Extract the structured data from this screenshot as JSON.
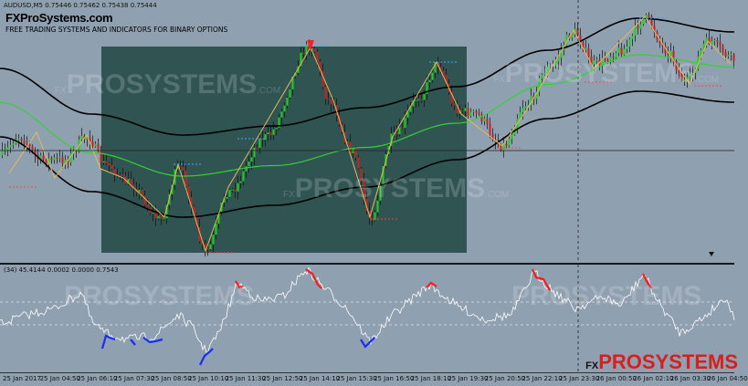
{
  "header": {
    "symbol_line": "AUDUSD,M5  0.75446 0.75462 0.75438 0.75444",
    "brand": "FXProSystems.com",
    "tagline": "FREE TRADING SYSTEMS AND INDICATORS FOR BINARY OPTIONS"
  },
  "watermarks": {
    "prefix": "FX",
    "main": "PROSYSTEMS",
    "suffix": ".COM"
  },
  "oscillator": {
    "header": "(34) 45.4144 0.0002 0.0000 0.7543"
  },
  "corner_logo": {
    "prefix": "FX",
    "main": "PROSYSTEMS"
  },
  "time_axis": {
    "labels": [
      "25 Jan 2017",
      "25 Jan 04:50",
      "25 Jan 06:10",
      "25 Jan 07:30",
      "25 Jan 08:50",
      "25 Jan 10:10",
      "25 Jan 11:30",
      "25 Jan 12:50",
      "25 Jan 14:10",
      "25 Jan 15:30",
      "25 Jan 16:50",
      "25 Jan 18:10",
      "25 Jan 19:30",
      "25 Jan 20:50",
      "25 Jan 22:10",
      "25 Jan 23:30",
      "26 Jan 00:50",
      "26 Jan 02:10",
      "26 Jan 03:30",
      "26 Jan 04:50"
    ]
  },
  "colors": {
    "background": "#8fa0b0",
    "highlight_box": "#2f5452",
    "bull_candle": "#1fd11f",
    "bear_candle": "#cc2020",
    "band": "#000000",
    "midline": "#33d233",
    "zigzag": "#e8b85a",
    "osc_line": "#ffffff",
    "osc_high": "#ff1a1a",
    "osc_low": "#1a2bff"
  }
}
